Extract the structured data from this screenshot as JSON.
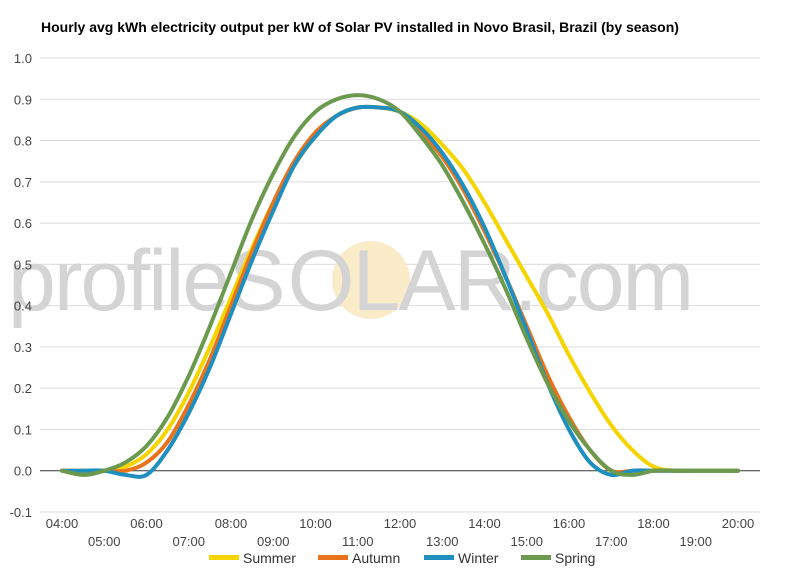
{
  "chart_data": {
    "type": "line",
    "title": "Hourly avg kWh electricity output per kW of Solar PV installed in Novo Brasil, Brazil (by season)",
    "xlabel": "",
    "ylabel": "",
    "x": [
      "04:00",
      "04:30",
      "05:00",
      "05:30",
      "06:00",
      "06:30",
      "07:00",
      "07:30",
      "08:00",
      "08:30",
      "09:00",
      "09:30",
      "10:00",
      "10:30",
      "11:00",
      "11:30",
      "12:00",
      "12:30",
      "13:00",
      "13:30",
      "14:00",
      "14:30",
      "15:00",
      "15:30",
      "16:00",
      "16:30",
      "17:00",
      "17:30",
      "18:00",
      "18:30",
      "19:00",
      "19:30",
      "20:00"
    ],
    "x_tick_labels": [
      "04:00",
      "05:00",
      "06:00",
      "07:00",
      "08:00",
      "09:00",
      "10:00",
      "11:00",
      "12:00",
      "13:00",
      "14:00",
      "15:00",
      "16:00",
      "17:00",
      "18:00",
      "19:00",
      "20:00"
    ],
    "y_tick_labels": [
      "1.0",
      "0.9",
      "0.8",
      "0.7",
      "0.6",
      "0.5",
      "0.4",
      "0.3",
      "0.2",
      "0.1",
      "0.0",
      "-0.1"
    ],
    "ylim": [
      -0.1,
      1.0
    ],
    "grid": true,
    "legend_position": "bottom",
    "series": [
      {
        "name": "Summer",
        "color": "#f5d400",
        "values": [
          0.0,
          0.0,
          0.0,
          0.01,
          0.04,
          0.1,
          0.19,
          0.3,
          0.42,
          0.54,
          0.65,
          0.74,
          0.81,
          0.86,
          0.88,
          0.88,
          0.87,
          0.84,
          0.79,
          0.73,
          0.65,
          0.56,
          0.47,
          0.38,
          0.28,
          0.19,
          0.11,
          0.05,
          0.01,
          0.0,
          0.0,
          0.0,
          0.0
        ]
      },
      {
        "name": "Autumn",
        "color": "#e8731c",
        "values": [
          0.0,
          0.0,
          0.0,
          0.0,
          0.02,
          0.07,
          0.16,
          0.27,
          0.4,
          0.53,
          0.65,
          0.75,
          0.82,
          0.86,
          0.88,
          0.88,
          0.87,
          0.82,
          0.76,
          0.68,
          0.58,
          0.47,
          0.35,
          0.23,
          0.13,
          0.05,
          0.0,
          0.0,
          0.0,
          0.0,
          0.0,
          0.0,
          0.0
        ]
      },
      {
        "name": "Winter",
        "color": "#1f8fc0",
        "values": [
          0.0,
          0.0,
          0.0,
          -0.01,
          -0.01,
          0.05,
          0.14,
          0.25,
          0.38,
          0.51,
          0.63,
          0.74,
          0.81,
          0.86,
          0.88,
          0.88,
          0.87,
          0.83,
          0.77,
          0.69,
          0.59,
          0.47,
          0.34,
          0.21,
          0.1,
          0.02,
          -0.01,
          0.0,
          0.0,
          0.0,
          0.0,
          0.0,
          0.0
        ]
      },
      {
        "name": "Spring",
        "color": "#6b9a4e",
        "values": [
          0.0,
          -0.01,
          0.0,
          0.02,
          0.06,
          0.13,
          0.23,
          0.35,
          0.48,
          0.61,
          0.72,
          0.81,
          0.87,
          0.9,
          0.91,
          0.9,
          0.87,
          0.81,
          0.74,
          0.65,
          0.55,
          0.44,
          0.32,
          0.21,
          0.12,
          0.05,
          0.0,
          -0.01,
          0.0,
          0.0,
          0.0,
          0.0,
          0.0
        ]
      }
    ]
  },
  "watermark": {
    "prefix": "profile",
    "s": "S",
    "o": "O",
    "suffix": "LAR.com",
    "sun_color": "#faecc8"
  }
}
